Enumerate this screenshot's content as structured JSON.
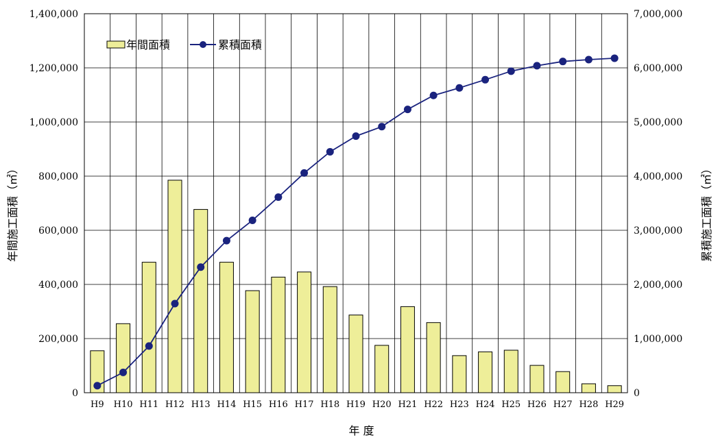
{
  "chart_data": {
    "type": "bar",
    "categories": [
      "H9",
      "H10",
      "H11",
      "H12",
      "H13",
      "H14",
      "H15",
      "H16",
      "H17",
      "H18",
      "H19",
      "H20",
      "H21",
      "H22",
      "H23",
      "H24",
      "H25",
      "H26",
      "H27",
      "H28",
      "H29"
    ],
    "series": [
      {
        "name": "年間面積",
        "type": "bar",
        "axis": "left",
        "values": [
          155000,
          255000,
          482000,
          785000,
          677000,
          482000,
          377000,
          427000,
          446000,
          392000,
          287000,
          175000,
          318000,
          259000,
          137000,
          151000,
          157000,
          101000,
          78000,
          33000,
          26000
        ]
      },
      {
        "name": "累積面積",
        "type": "line",
        "axis": "right",
        "values": [
          130000,
          375000,
          862000,
          1645000,
          2320000,
          2808000,
          3184000,
          3612000,
          4058000,
          4450000,
          4739000,
          4914000,
          5232000,
          5491000,
          5630000,
          5781000,
          5939000,
          6040000,
          6118000,
          6152000,
          6178000
        ]
      }
    ],
    "xlabel": "年 度",
    "ylabel": "年間施工面積（㎡）",
    "y2label": "累積施工面積（㎡）",
    "ylim": [
      0,
      1400000
    ],
    "y2lim": [
      0,
      7000000
    ],
    "yticks": [
      "0",
      "200,000",
      "400,000",
      "600,000",
      "800,000",
      "1,000,000",
      "1,200,000",
      "1,400,000"
    ],
    "y2ticks": [
      "0",
      "1,000,000",
      "2,000,000",
      "3,000,000",
      "4,000,000",
      "5,000,000",
      "6,000,000",
      "7,000,000"
    ],
    "grid": "vertical",
    "legend_position": "top-left",
    "colors": {
      "bar_fill": "#eeee99",
      "bar_stroke": "#000000",
      "line": "#1a237e",
      "marker": "#1a237e"
    }
  }
}
